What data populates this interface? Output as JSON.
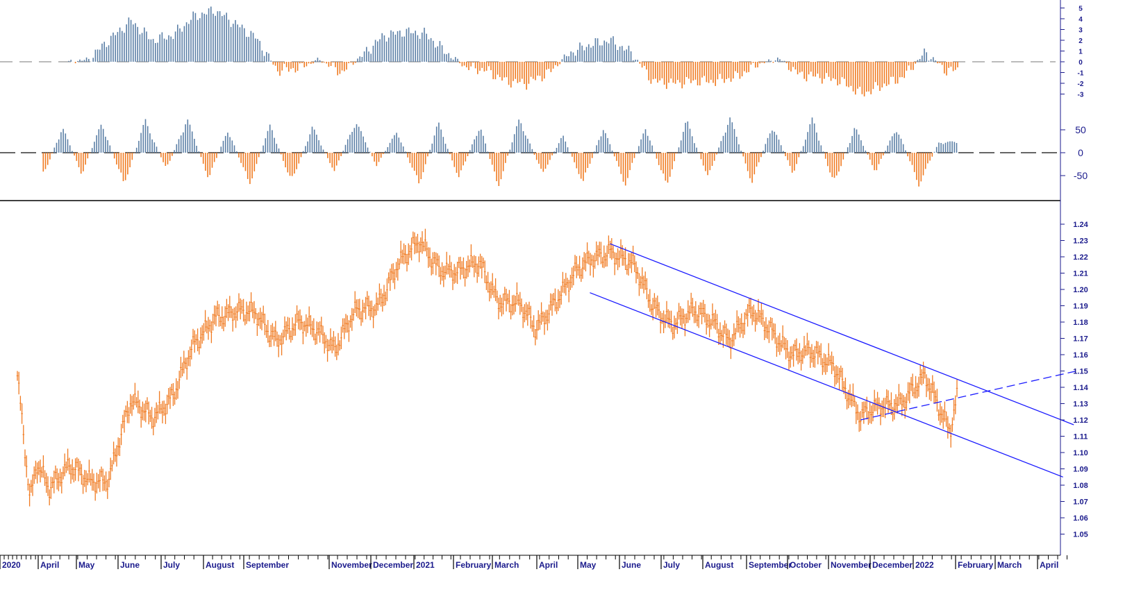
{
  "chart_data": [
    {
      "type": "bar",
      "panel": "top-histogram",
      "title": "",
      "ylim": [
        -3.5,
        5.5
      ],
      "yticks": [
        5,
        4,
        3,
        2,
        1,
        0,
        -1,
        -2,
        -3
      ],
      "ytick_labels": [
        "5",
        "4",
        "3",
        "2",
        "1",
        "0",
        "-1",
        "-2",
        "-3"
      ],
      "zero_line": "dashed",
      "positive_color": "#5b7fa6",
      "negative_color": "#f07a20",
      "x": [
        "2020-04-25",
        "2020-05-10",
        "2020-05-25",
        "2020-06-10",
        "2020-06-25",
        "2020-07-10",
        "2020-07-25",
        "2020-08-10",
        "2020-08-25",
        "2020-09-10",
        "2020-09-25",
        "2020-10-10",
        "2020-10-25",
        "2020-11-10",
        "2020-11-25",
        "2020-12-10",
        "2020-12-25",
        "2021-01-10",
        "2021-01-25",
        "2021-02-10",
        "2021-02-25",
        "2021-03-10",
        "2021-03-25",
        "2021-04-10",
        "2021-04-25",
        "2021-05-10",
        "2021-05-25",
        "2021-06-10",
        "2021-06-25",
        "2021-07-10",
        "2021-07-25",
        "2021-08-10",
        "2021-08-25",
        "2021-09-10",
        "2021-09-25",
        "2021-10-10",
        "2021-10-25",
        "2021-11-10",
        "2021-11-25",
        "2021-12-10",
        "2021-12-25",
        "2022-01-10",
        "2022-01-25"
      ],
      "values": [
        0,
        0.2,
        2.0,
        3.8,
        2.0,
        2.5,
        4.2,
        4.8,
        3.6,
        2.2,
        -0.8,
        -0.6,
        0.2,
        -1.0,
        0.6,
        2.4,
        2.8,
        2.6,
        1.0,
        -0.5,
        -0.8,
        -1.8,
        -2.0,
        -1.0,
        0.8,
        1.6,
        2.0,
        0.8,
        -1.8,
        -2.0,
        -1.8,
        -1.8,
        -1.4,
        -0.2,
        0.3,
        -1.2,
        -1.4,
        -1.8,
        -3.0,
        -2.2,
        -1.4,
        0.9,
        -0.8
      ]
    },
    {
      "type": "bar",
      "panel": "middle-oscillator",
      "title": "",
      "ylim": [
        -100,
        100
      ],
      "yticks": [
        50,
        0,
        -50
      ],
      "ytick_labels": [
        "50",
        "0",
        "-50"
      ],
      "zero_line": "dashed",
      "positive_color": "#5b7fa6",
      "negative_color": "#f07a20",
      "x": [
        "2020-04-05",
        "2020-04-20",
        "2020-05-05",
        "2020-05-20",
        "2020-06-05",
        "2020-06-20",
        "2020-07-05",
        "2020-07-20",
        "2020-08-05",
        "2020-08-20",
        "2020-09-05",
        "2020-09-20",
        "2020-10-05",
        "2020-10-20",
        "2020-11-05",
        "2020-11-20",
        "2020-12-05",
        "2020-12-20",
        "2021-01-05",
        "2021-01-20",
        "2021-02-05",
        "2021-02-20",
        "2021-03-05",
        "2021-03-20",
        "2021-04-05",
        "2021-04-20",
        "2021-05-05",
        "2021-05-20",
        "2021-06-05",
        "2021-06-20",
        "2021-07-05",
        "2021-07-20",
        "2021-08-05",
        "2021-08-20",
        "2021-09-05",
        "2021-09-20",
        "2021-10-05",
        "2021-10-20",
        "2021-11-05",
        "2021-11-20",
        "2021-12-05",
        "2021-12-20",
        "2022-01-05",
        "2022-01-20"
      ],
      "values": [
        -55,
        60,
        -50,
        70,
        -75,
        75,
        -40,
        80,
        -60,
        55,
        -75,
        65,
        -70,
        60,
        -45,
        75,
        -30,
        50,
        -75,
        70,
        -60,
        65,
        -80,
        80,
        -50,
        40,
        -70,
        60,
        -75,
        60,
        -80,
        75,
        -60,
        85,
        -70,
        65,
        -50,
        80,
        -75,
        60,
        -45,
        60,
        -75,
        25
      ]
    },
    {
      "type": "line",
      "panel": "main-price",
      "title": "",
      "xlabel": "",
      "ylabel": "",
      "ylim": [
        1.05,
        1.245
      ],
      "yticks": [
        1.24,
        1.23,
        1.22,
        1.21,
        1.2,
        1.19,
        1.18,
        1.17,
        1.16,
        1.15,
        1.14,
        1.13,
        1.12,
        1.11,
        1.1,
        1.09,
        1.08,
        1.07,
        1.06,
        1.05
      ],
      "ytick_labels": [
        "1.24",
        "1.23",
        "1.22",
        "1.21",
        "1.20",
        "1.19",
        "1.18",
        "1.17",
        "1.16",
        "1.15",
        "1.14",
        "1.13",
        "1.12",
        "1.11",
        "1.10",
        "1.09",
        "1.08",
        "1.07",
        "1.06",
        "1.05"
      ],
      "series_color": "#f07a20",
      "x": [
        "2020-03-01",
        "2020-03-10",
        "2020-03-20",
        "2020-03-30",
        "2020-04-10",
        "2020-04-25",
        "2020-05-10",
        "2020-05-25",
        "2020-06-10",
        "2020-06-25",
        "2020-07-10",
        "2020-07-25",
        "2020-08-10",
        "2020-08-25",
        "2020-09-10",
        "2020-09-25",
        "2020-10-10",
        "2020-10-25",
        "2020-11-05",
        "2020-11-20",
        "2020-12-05",
        "2020-12-20",
        "2021-01-06",
        "2021-01-20",
        "2021-02-05",
        "2021-02-20",
        "2021-03-05",
        "2021-03-20",
        "2021-03-31",
        "2021-04-15",
        "2021-04-30",
        "2021-05-15",
        "2021-05-25",
        "2021-06-10",
        "2021-06-25",
        "2021-07-10",
        "2021-07-25",
        "2021-08-10",
        "2021-08-20",
        "2021-09-05",
        "2021-09-20",
        "2021-10-05",
        "2021-10-20",
        "2021-11-05",
        "2021-11-24",
        "2021-12-10",
        "2021-12-25",
        "2022-01-10",
        "2022-01-28",
        "2022-02-03"
      ],
      "values": [
        1.145,
        1.11,
        1.07,
        1.095,
        1.08,
        1.09,
        1.083,
        1.085,
        1.13,
        1.123,
        1.135,
        1.165,
        1.185,
        1.185,
        1.185,
        1.17,
        1.178,
        1.175,
        1.165,
        1.185,
        1.19,
        1.215,
        1.228,
        1.215,
        1.21,
        1.215,
        1.195,
        1.19,
        1.175,
        1.195,
        1.21,
        1.22,
        1.225,
        1.215,
        1.19,
        1.18,
        1.185,
        1.18,
        1.17,
        1.185,
        1.175,
        1.16,
        1.16,
        1.155,
        1.12,
        1.13,
        1.132,
        1.145,
        1.115,
        1.14
      ],
      "channel": {
        "upper": {
          "x": [
            "2021-05-25",
            "2022-04-28"
          ],
          "y": [
            1.228,
            1.117
          ]
        },
        "lower": {
          "x": [
            "2021-05-10",
            "2022-04-20"
          ],
          "y": [
            1.198,
            1.085
          ]
        },
        "dashed_support": {
          "x": [
            "2021-11-24",
            "2022-04-30"
          ],
          "y": [
            1.12,
            1.15
          ]
        }
      },
      "channel_color": "#1a1aff"
    }
  ],
  "x_axis": {
    "labels": [
      "2020",
      "April",
      "May",
      "June",
      "July",
      "August",
      "September",
      "November",
      "December",
      "2021",
      "February",
      "March",
      "April",
      "May",
      "June",
      "July",
      "August",
      "September",
      "October",
      "November",
      "December",
      "2022",
      "February",
      "March",
      "April"
    ]
  }
}
